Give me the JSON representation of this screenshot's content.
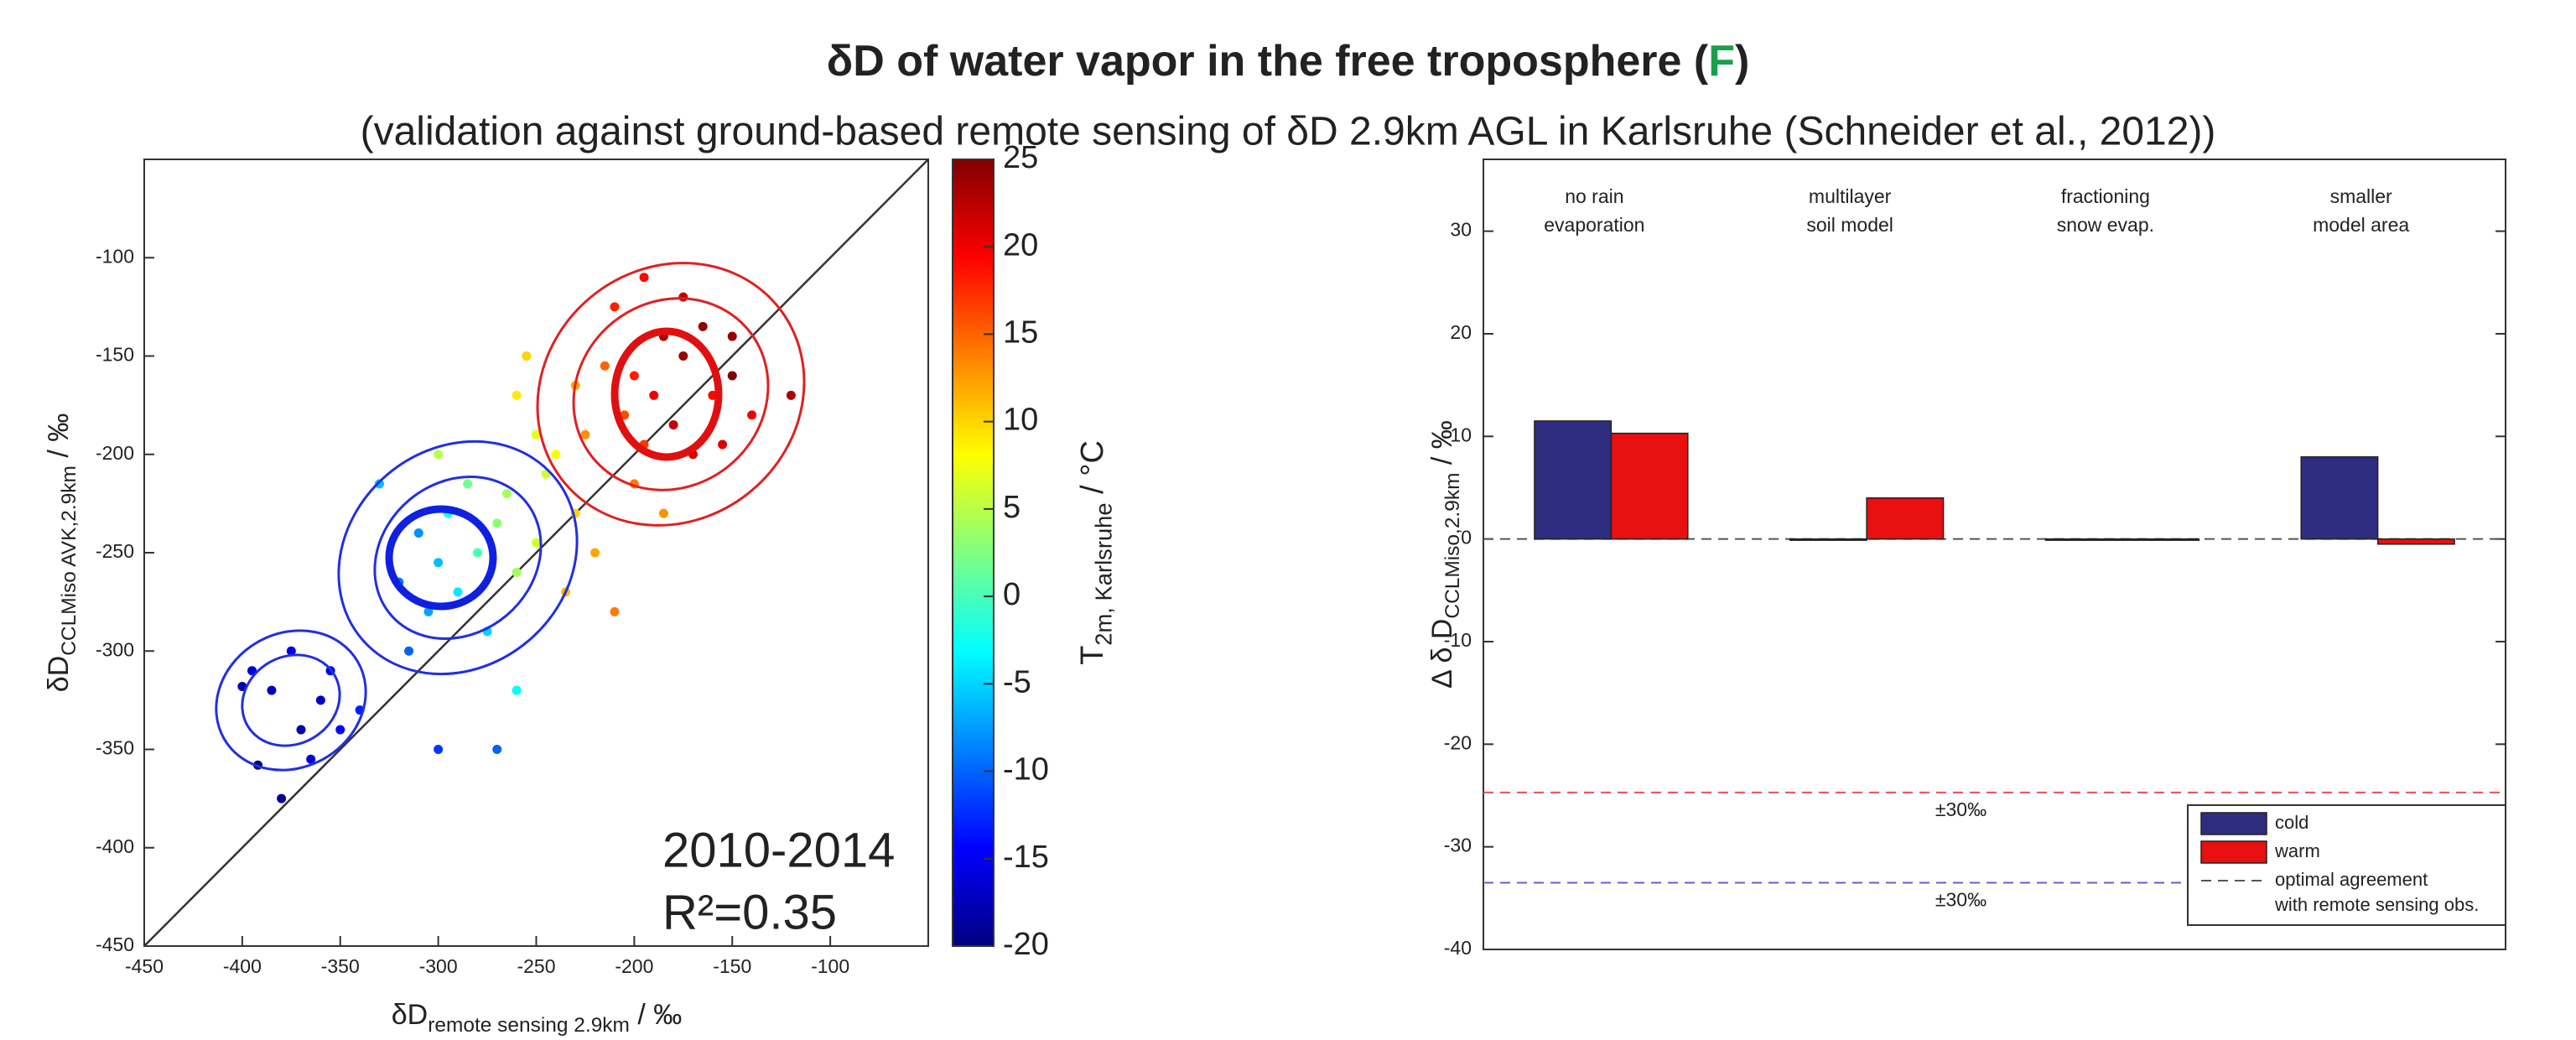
{
  "header": {
    "title": [
      "δD of water vapor in the free troposphere (",
      "F",
      ")"
    ],
    "title_highlight_color": "#1aa04a",
    "subtitle": "(validation against ground-based remote sensing of δD 2.9km AGL in Karlsruhe (Schneider et al., 2012))"
  },
  "chart_data": [
    {
      "type": "scatter",
      "xlabel": [
        "δD",
        "remote sensing 2.9km",
        " / ‰"
      ],
      "ylabel": [
        "δD",
        "CCLMiso AVK,2.9km",
        " / ‰"
      ],
      "colorbar_label": [
        "T",
        "2m, Karlsruhe",
        " / °C"
      ],
      "annotations": [
        "2010-2014",
        "R²=0.35"
      ],
      "xlim": [
        -450,
        -50
      ],
      "ylim": [
        -450,
        -50
      ],
      "xticks": [
        -450,
        -400,
        -350,
        -300,
        -250,
        -200,
        -150,
        -100
      ],
      "yticks": [
        -450,
        -400,
        -350,
        -300,
        -250,
        -200,
        -150,
        -100
      ],
      "clim": [
        -20,
        25
      ],
      "cticks": [
        -20,
        -15,
        -10,
        -5,
        0,
        5,
        10,
        15,
        20,
        25
      ],
      "colormap": "jet",
      "x": [
        -385,
        -380,
        -370,
        -395,
        -360,
        -350,
        -375,
        -392,
        -340,
        -365,
        -355,
        -400,
        -300,
        -290,
        -310,
        -280,
        -295,
        -320,
        -270,
        -305,
        -285,
        -260,
        -315,
        -275,
        -300,
        -270,
        -330,
        -250,
        -300,
        -260,
        -240,
        -230,
        -250,
        -220,
        -260,
        -235,
        -245,
        -225,
        -265,
        -210,
        -255,
        -190,
        -180,
        -200,
        -175,
        -170,
        -195,
        -185,
        -160,
        -205,
        -150,
        -215,
        -175,
        -165,
        -200,
        -140,
        -120,
        -210,
        -185,
        -155,
        -195,
        -230,
        -150
      ],
      "y": [
        -320,
        -375,
        -340,
        -310,
        -325,
        -340,
        -300,
        -358,
        -330,
        -355,
        -310,
        -318,
        -255,
        -270,
        -240,
        -250,
        -230,
        -265,
        -235,
        -280,
        -215,
        -260,
        -300,
        -290,
        -350,
        -350,
        -215,
        -245,
        -200,
        -320,
        -200,
        -230,
        -190,
        -250,
        -170,
        -270,
        -210,
        -190,
        -220,
        -280,
        -150,
        -170,
        -185,
        -160,
        -150,
        -200,
        -195,
        -140,
        -170,
        -180,
        -160,
        -155,
        -120,
        -135,
        -215,
        -180,
        -170,
        -125,
        -230,
        -195,
        -110,
        -165,
        -140
      ],
      "c": [
        -17,
        -19,
        -18,
        -16,
        -17,
        -14,
        -15,
        -20,
        -13,
        -16,
        -15,
        -18,
        -6,
        -4,
        -8,
        0,
        -2,
        -9,
        3,
        -7,
        2,
        4,
        -10,
        -5,
        -12,
        -10,
        -6,
        6,
        5,
        -3,
        8,
        10,
        7,
        12,
        9,
        11,
        6,
        13,
        4,
        14,
        10,
        20,
        22,
        18,
        24,
        21,
        17,
        23,
        19,
        16,
        25,
        15,
        22,
        24,
        14,
        20,
        23,
        18,
        13,
        21,
        19,
        12,
        24
      ]
    },
    {
      "type": "bar",
      "ylabel": [
        "Δ δ D",
        "CCLMiso,2.9km",
        " / ‰"
      ],
      "categories": [
        [
          "no rain",
          "evaporation"
        ],
        [
          "multilayer",
          "soil model"
        ],
        [
          "fractioning",
          "snow evap."
        ],
        [
          "smaller",
          "model area"
        ]
      ],
      "series": [
        {
          "name": "cold",
          "color": "#2e2d7f",
          "values": [
            11.5,
            0,
            0,
            8
          ]
        },
        {
          "name": "warm",
          "color": "#e81010",
          "values": [
            10.3,
            4,
            0,
            -0.5
          ]
        }
      ],
      "ylim": [
        -40,
        37
      ],
      "yticks": [
        -40,
        -30,
        -20,
        -10,
        0,
        10,
        20,
        30
      ],
      "reference_lines": [
        {
          "value": -24.7,
          "color": "#e85050",
          "label": "±30‰"
        },
        {
          "value": -33.5,
          "color": "#6060d0",
          "label": "±30‰"
        },
        {
          "value": 0,
          "color": "#555555",
          "name": [
            "optimal agreement",
            "with remote sensing obs."
          ]
        }
      ],
      "legend": "lower right"
    }
  ]
}
